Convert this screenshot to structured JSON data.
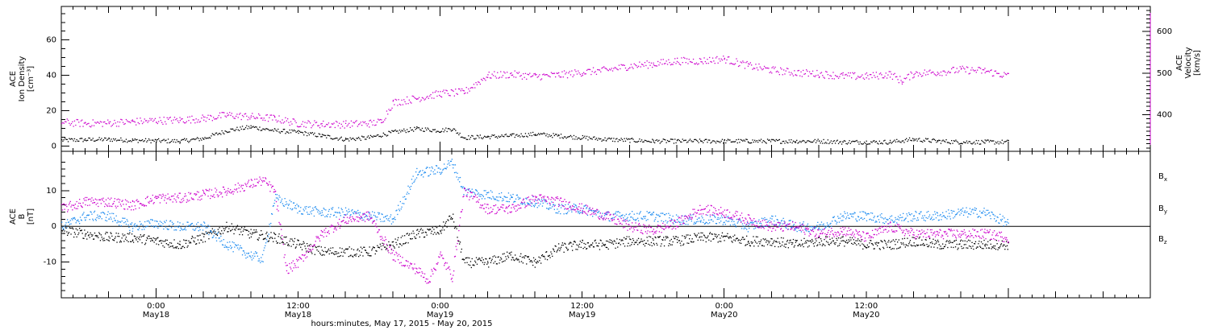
{
  "chart_data": [
    {
      "type": "scatter",
      "panel": "plasma",
      "ylabel_lines": [
        "ACE",
        "Ion Density",
        "[cm⁻³]"
      ],
      "y2label_lines": [
        "ACE",
        "Velocity",
        "[km/s]"
      ],
      "ylim": [
        -3,
        79
      ],
      "y2lim": [
        312,
        660
      ],
      "yticks": [
        0,
        20,
        40,
        60
      ],
      "y2ticks": [
        400,
        500,
        600
      ],
      "x_start_hours": -8.0,
      "x_end_hours": 84.0,
      "series": [
        {
          "name": "",
          "axis": "left",
          "color": "#000000",
          "points": [
            [
              -8,
              3.5
            ],
            [
              -6,
              3.8
            ],
            [
              -4,
              4
            ],
            [
              -2,
              3.5
            ],
            [
              0,
              3.2
            ],
            [
              2,
              3
            ],
            [
              4,
              4.5
            ],
            [
              6,
              9
            ],
            [
              8,
              11
            ],
            [
              10,
              9
            ],
            [
              12,
              8
            ],
            [
              14,
              6
            ],
            [
              16,
              4
            ],
            [
              18,
              5
            ],
            [
              20,
              8
            ],
            [
              22,
              10
            ],
            [
              24,
              9
            ],
            [
              25,
              10
            ],
            [
              26,
              5
            ],
            [
              28,
              5.5
            ],
            [
              30,
              6
            ],
            [
              32,
              7
            ],
            [
              34,
              6
            ],
            [
              36,
              5
            ],
            [
              38,
              4
            ],
            [
              40,
              3.5
            ],
            [
              42,
              3
            ],
            [
              44,
              3
            ],
            [
              46,
              3
            ],
            [
              48,
              3
            ],
            [
              50,
              3
            ],
            [
              52,
              3
            ],
            [
              54,
              3
            ],
            [
              56,
              3
            ],
            [
              58,
              2.5
            ],
            [
              60,
              2.5
            ],
            [
              62,
              2.5
            ],
            [
              64,
              4
            ],
            [
              66,
              3
            ],
            [
              68,
              2.5
            ],
            [
              70,
              2.5
            ],
            [
              72,
              2.5
            ]
          ]
        },
        {
          "name": "",
          "axis": "right",
          "color": "#cc00cc",
          "points": [
            [
              -8,
              383
            ],
            [
              -6,
              380
            ],
            [
              -4,
              381
            ],
            [
              -2,
              384
            ],
            [
              0,
              387
            ],
            [
              2,
              388
            ],
            [
              4,
              392
            ],
            [
              6,
              400
            ],
            [
              8,
              396
            ],
            [
              10,
              392
            ],
            [
              12,
              380
            ],
            [
              14,
              378
            ],
            [
              16,
              378
            ],
            [
              18,
              380
            ],
            [
              19,
              384
            ],
            [
              20,
              430
            ],
            [
              22,
              440
            ],
            [
              24,
              452
            ],
            [
              26,
              455
            ],
            [
              28,
              495
            ],
            [
              30,
              498
            ],
            [
              32,
              493
            ],
            [
              34,
              496
            ],
            [
              36,
              503
            ],
            [
              38,
              508
            ],
            [
              40,
              518
            ],
            [
              42,
              523
            ],
            [
              44,
              530
            ],
            [
              46,
              530
            ],
            [
              48,
              535
            ],
            [
              50,
              519
            ],
            [
              52,
              508
            ],
            [
              54,
              502
            ],
            [
              56,
              499
            ],
            [
              58,
              494
            ],
            [
              60,
              493
            ],
            [
              62,
              498
            ],
            [
              63,
              482
            ],
            [
              64,
              500
            ],
            [
              66,
              503
            ],
            [
              68,
              509
            ],
            [
              70,
              506
            ],
            [
              72,
              494
            ]
          ]
        }
      ]
    },
    {
      "type": "scatter",
      "panel": "magnetic-field",
      "ylabel_lines": [
        "ACE",
        "B",
        "[nT]"
      ],
      "ylim": [
        -20,
        21
      ],
      "yticks": [
        -10,
        0,
        10
      ],
      "x_start_hours": -8.0,
      "x_end_hours": 84.0,
      "legend": [
        "Bx",
        "By",
        "Bz"
      ],
      "legend_colors": [
        "#000000",
        "#1e8cf0",
        "#cc00cc"
      ],
      "legend_position": "right",
      "series": [
        {
          "name": "Bx",
          "color": "#000000",
          "points": [
            [
              -8,
              -1
            ],
            [
              -6,
              -2
            ],
            [
              -4,
              -3
            ],
            [
              -2,
              -3
            ],
            [
              0,
              -4
            ],
            [
              2,
              -5
            ],
            [
              4,
              -3
            ],
            [
              6,
              0
            ],
            [
              8,
              -2
            ],
            [
              10,
              -3
            ],
            [
              12,
              -5
            ],
            [
              14,
              -7
            ],
            [
              16,
              -7
            ],
            [
              18,
              -7
            ],
            [
              20,
              -5
            ],
            [
              22,
              -2
            ],
            [
              24,
              -1
            ],
            [
              25,
              3
            ],
            [
              26,
              -10
            ],
            [
              28,
              -10
            ],
            [
              30,
              -8
            ],
            [
              32,
              -10
            ],
            [
              34,
              -6
            ],
            [
              36,
              -5
            ],
            [
              38,
              -5
            ],
            [
              40,
              -4
            ],
            [
              42,
              -4
            ],
            [
              44,
              -4
            ],
            [
              46,
              -3
            ],
            [
              48,
              -3
            ],
            [
              50,
              -4
            ],
            [
              52,
              -4
            ],
            [
              54,
              -5
            ],
            [
              56,
              -4
            ],
            [
              58,
              -4
            ],
            [
              60,
              -5
            ],
            [
              62,
              -5
            ],
            [
              64,
              -4
            ],
            [
              66,
              -5
            ],
            [
              68,
              -5
            ],
            [
              70,
              -5
            ],
            [
              72,
              -5
            ]
          ]
        },
        {
          "name": "By",
          "color": "#1e8cf0",
          "points": [
            [
              -8,
              0
            ],
            [
              -6,
              3
            ],
            [
              -4,
              3
            ],
            [
              -2,
              0
            ],
            [
              0,
              1
            ],
            [
              2,
              0
            ],
            [
              4,
              0
            ],
            [
              6,
              -5
            ],
            [
              8,
              -8
            ],
            [
              9,
              -9
            ],
            [
              10,
              8
            ],
            [
              12,
              5
            ],
            [
              14,
              4
            ],
            [
              16,
              4
            ],
            [
              18,
              3
            ],
            [
              20,
              2
            ],
            [
              22,
              15
            ],
            [
              24,
              16
            ],
            [
              25,
              18
            ],
            [
              26,
              10
            ],
            [
              28,
              9
            ],
            [
              30,
              8
            ],
            [
              32,
              7
            ],
            [
              34,
              5
            ],
            [
              36,
              5
            ],
            [
              38,
              3
            ],
            [
              40,
              3
            ],
            [
              42,
              3
            ],
            [
              44,
              2
            ],
            [
              46,
              2
            ],
            [
              48,
              2
            ],
            [
              50,
              0
            ],
            [
              52,
              2
            ],
            [
              54,
              0
            ],
            [
              56,
              0
            ],
            [
              58,
              3
            ],
            [
              60,
              3
            ],
            [
              62,
              2
            ],
            [
              64,
              3
            ],
            [
              66,
              3
            ],
            [
              68,
              4
            ],
            [
              70,
              4
            ],
            [
              72,
              1
            ]
          ]
        },
        {
          "name": "Bz",
          "color": "#cc00cc",
          "points": [
            [
              -8,
              5
            ],
            [
              -6,
              7
            ],
            [
              -4,
              7
            ],
            [
              -2,
              6
            ],
            [
              0,
              8
            ],
            [
              2,
              8
            ],
            [
              4,
              9
            ],
            [
              6,
              10
            ],
            [
              8,
              12
            ],
            [
              9,
              13
            ],
            [
              10,
              10
            ],
            [
              11,
              -12
            ],
            [
              12,
              -10
            ],
            [
              14,
              -2
            ],
            [
              16,
              2
            ],
            [
              18,
              3
            ],
            [
              20,
              -8
            ],
            [
              22,
              -12
            ],
            [
              23,
              -15
            ],
            [
              24,
              -8
            ],
            [
              25,
              -14
            ],
            [
              26,
              10
            ],
            [
              28,
              5
            ],
            [
              30,
              5
            ],
            [
              32,
              8
            ],
            [
              34,
              7
            ],
            [
              36,
              5
            ],
            [
              38,
              3
            ],
            [
              40,
              0
            ],
            [
              42,
              -1
            ],
            [
              44,
              1
            ],
            [
              46,
              5
            ],
            [
              48,
              4
            ],
            [
              50,
              2
            ],
            [
              52,
              0
            ],
            [
              54,
              0
            ],
            [
              56,
              -2
            ],
            [
              58,
              -1
            ],
            [
              60,
              -3
            ],
            [
              62,
              0
            ],
            [
              64,
              -2
            ],
            [
              66,
              -2
            ],
            [
              68,
              -2
            ],
            [
              70,
              -2
            ],
            [
              72,
              -3
            ]
          ]
        }
      ]
    }
  ],
  "x_axis": {
    "major_tick_hours": [
      0,
      24,
      48,
      72
    ],
    "labels": [
      {
        "hours": 0,
        "time": "0:00",
        "date": "May18"
      },
      {
        "hours": 12,
        "time": "12:00",
        "date": "May18"
      },
      {
        "hours": 24,
        "time": "0:00",
        "date": "May19"
      },
      {
        "hours": 36,
        "time": "12:00",
        "date": "May19"
      },
      {
        "hours": 48,
        "time": "0:00",
        "date": "May20"
      },
      {
        "hours": 60,
        "time": "12:00",
        "date": "May20"
      }
    ],
    "title": "hours:minutes, May 17, 2015 - May 20, 2015"
  },
  "colors": {
    "magenta": "#cc00cc",
    "blue": "#1e8cf0",
    "black": "#000000"
  }
}
